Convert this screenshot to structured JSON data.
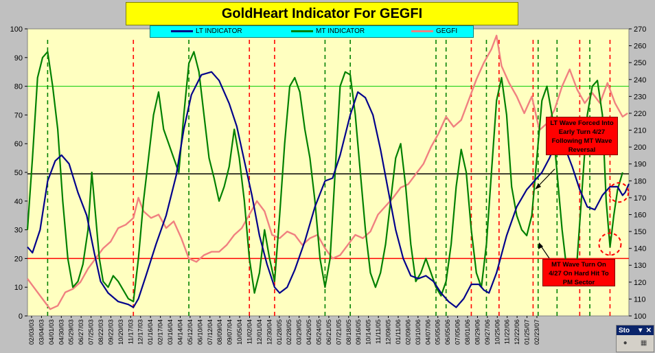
{
  "title": "GoldHeart Indicator For GEGFI",
  "legend": [
    {
      "name": "LT INDICATOR",
      "color": "#00008b"
    },
    {
      "name": "MT INDICATOR",
      "color": "#008000"
    },
    {
      "name": "GEGFI",
      "color": "#f08080"
    }
  ],
  "callouts": {
    "lt": "LT Wave Forced Into Early Turn 4/27 Following MT Wave Reversal",
    "mt": "MT Wave Turn On 4/27 On Hard Hit To PM Sector"
  },
  "widget": {
    "label": "Sto",
    "dropdown": "▼",
    "close": "✕"
  },
  "colors": {
    "plot_bg": "#ffffc0",
    "frame": "#c0c0c0",
    "lt": "#00008b",
    "mt": "#008000",
    "gegfi": "#f08080",
    "ref_black": "#000000",
    "ref_red": "#ff0000",
    "ref_green": "#00cc00"
  },
  "chart_data": {
    "type": "line",
    "title": "GoldHeart Indicator For GEGFI",
    "ylim": [
      0,
      100
    ],
    "y2lim": [
      100,
      270
    ],
    "y_ticks": [
      0,
      10,
      20,
      30,
      40,
      50,
      60,
      70,
      80,
      90,
      100
    ],
    "y2_ticks": [
      100,
      110,
      120,
      130,
      140,
      150,
      160,
      170,
      180,
      190,
      200,
      210,
      220,
      230,
      240,
      250,
      260,
      270
    ],
    "x_tick_labels": [
      "02/03/03",
      "03/04/03",
      "04/01/03",
      "04/30/03",
      "05/29/03",
      "06/27/03",
      "07/25/03",
      "08/22/03",
      "09/22/03",
      "10/20/03",
      "11/17/03",
      "12/17/03",
      "01/16/04",
      "02/17/04",
      "03/16/04",
      "04/14/04",
      "05/12/04",
      "06/10/04",
      "07/12/04",
      "08/09/04",
      "09/07/04",
      "10/05/04",
      "11/02/04",
      "12/01/04",
      "12/30/04",
      "01/28/05",
      "02/28/05",
      "03/29/05",
      "04/26/05",
      "05/24/05",
      "06/21/05",
      "07/21/05",
      "08/18/05",
      "09/16/05",
      "10/14/05",
      "11/11/05",
      "12/09/05",
      "01/11/06",
      "02/09/06",
      "03/10/06",
      "04/07/06",
      "05/05/06",
      "06/05/06",
      "07/05/06",
      "08/01/06",
      "08/29/06",
      "09/27/06",
      "10/25/06",
      "11/22/06",
      "12/22/06",
      "01/25/07",
      "02/23/07"
    ],
    "reference_lines": [
      {
        "value": 80,
        "color": "#00cc00"
      },
      {
        "value": 49.5,
        "color": "#000000"
      },
      {
        "value": 20,
        "color": "#ff0000"
      }
    ],
    "series": [
      {
        "name": "LT INDICATOR",
        "axis": "left",
        "values": [
          [
            0,
            24
          ],
          [
            4,
            22
          ],
          [
            10,
            30
          ],
          [
            16,
            47
          ],
          [
            22,
            54
          ],
          [
            27,
            56
          ],
          [
            33,
            53
          ],
          [
            40,
            43
          ],
          [
            47,
            35
          ],
          [
            53,
            22
          ],
          [
            58,
            12
          ],
          [
            64,
            8
          ],
          [
            72,
            5
          ],
          [
            80,
            4
          ],
          [
            84,
            3
          ],
          [
            88,
            6
          ],
          [
            94,
            14
          ],
          [
            102,
            25
          ],
          [
            110,
            35
          ],
          [
            118,
            49
          ],
          [
            124,
            65
          ],
          [
            130,
            77
          ],
          [
            138,
            84
          ],
          [
            146,
            85
          ],
          [
            152,
            82
          ],
          [
            160,
            74
          ],
          [
            166,
            66
          ],
          [
            172,
            54
          ],
          [
            178,
            42
          ],
          [
            184,
            28
          ],
          [
            190,
            18
          ],
          [
            196,
            10
          ],
          [
            200,
            8
          ],
          [
            206,
            10
          ],
          [
            212,
            16
          ],
          [
            220,
            26
          ],
          [
            228,
            38
          ],
          [
            236,
            47
          ],
          [
            242,
            48
          ],
          [
            248,
            56
          ],
          [
            256,
            70
          ],
          [
            262,
            78
          ],
          [
            268,
            76
          ],
          [
            274,
            70
          ],
          [
            280,
            58
          ],
          [
            286,
            44
          ],
          [
            292,
            30
          ],
          [
            298,
            20
          ],
          [
            304,
            14
          ],
          [
            310,
            13
          ],
          [
            316,
            14
          ],
          [
            322,
            12
          ],
          [
            328,
            8
          ],
          [
            334,
            5
          ],
          [
            340,
            3
          ],
          [
            346,
            6
          ],
          [
            352,
            11
          ],
          [
            358,
            11
          ],
          [
            362,
            9
          ],
          [
            366,
            8
          ],
          [
            372,
            15
          ],
          [
            380,
            28
          ],
          [
            388,
            38
          ],
          [
            396,
            44
          ],
          [
            404,
            48
          ],
          [
            408,
            50
          ],
          [
            414,
            55
          ],
          [
            420,
            61
          ],
          [
            426,
            59
          ],
          [
            432,
            52
          ],
          [
            438,
            44
          ],
          [
            444,
            38
          ],
          [
            450,
            37
          ],
          [
            456,
            42
          ],
          [
            462,
            45
          ],
          [
            468,
            45
          ],
          [
            472,
            42
          ],
          [
            474,
            43
          ],
          [
            477,
            46
          ]
        ]
      },
      {
        "name": "MT INDICATOR",
        "axis": "left",
        "values": [
          [
            0,
            30
          ],
          [
            4,
            55
          ],
          [
            8,
            83
          ],
          [
            12,
            90
          ],
          [
            16,
            92
          ],
          [
            20,
            80
          ],
          [
            24,
            65
          ],
          [
            28,
            40
          ],
          [
            32,
            20
          ],
          [
            36,
            10
          ],
          [
            40,
            12
          ],
          [
            44,
            18
          ],
          [
            48,
            30
          ],
          [
            51,
            50
          ],
          [
            54,
            35
          ],
          [
            57,
            20
          ],
          [
            60,
            12
          ],
          [
            64,
            10
          ],
          [
            68,
            14
          ],
          [
            72,
            12
          ],
          [
            76,
            9
          ],
          [
            80,
            6
          ],
          [
            84,
            5
          ],
          [
            88,
            20
          ],
          [
            92,
            40
          ],
          [
            96,
            55
          ],
          [
            100,
            70
          ],
          [
            104,
            78
          ],
          [
            108,
            65
          ],
          [
            112,
            60
          ],
          [
            116,
            55
          ],
          [
            120,
            50
          ],
          [
            124,
            70
          ],
          [
            128,
            88
          ],
          [
            132,
            92
          ],
          [
            136,
            85
          ],
          [
            140,
            70
          ],
          [
            144,
            55
          ],
          [
            148,
            48
          ],
          [
            152,
            40
          ],
          [
            156,
            45
          ],
          [
            160,
            52
          ],
          [
            164,
            65
          ],
          [
            168,
            55
          ],
          [
            172,
            40
          ],
          [
            176,
            20
          ],
          [
            180,
            8
          ],
          [
            184,
            15
          ],
          [
            188,
            30
          ],
          [
            192,
            20
          ],
          [
            196,
            12
          ],
          [
            200,
            35
          ],
          [
            204,
            60
          ],
          [
            208,
            80
          ],
          [
            212,
            83
          ],
          [
            216,
            78
          ],
          [
            220,
            65
          ],
          [
            224,
            55
          ],
          [
            228,
            40
          ],
          [
            232,
            20
          ],
          [
            236,
            10
          ],
          [
            240,
            20
          ],
          [
            244,
            50
          ],
          [
            248,
            80
          ],
          [
            252,
            85
          ],
          [
            256,
            84
          ],
          [
            260,
            70
          ],
          [
            264,
            50
          ],
          [
            268,
            30
          ],
          [
            272,
            15
          ],
          [
            276,
            10
          ],
          [
            280,
            15
          ],
          [
            284,
            25
          ],
          [
            288,
            40
          ],
          [
            292,
            55
          ],
          [
            296,
            60
          ],
          [
            300,
            45
          ],
          [
            304,
            25
          ],
          [
            308,
            12
          ],
          [
            312,
            15
          ],
          [
            316,
            20
          ],
          [
            320,
            15
          ],
          [
            324,
            10
          ],
          [
            328,
            7
          ],
          [
            332,
            12
          ],
          [
            336,
            25
          ],
          [
            340,
            45
          ],
          [
            344,
            58
          ],
          [
            348,
            50
          ],
          [
            352,
            30
          ],
          [
            356,
            15
          ],
          [
            360,
            10
          ],
          [
            364,
            25
          ],
          [
            368,
            50
          ],
          [
            372,
            75
          ],
          [
            376,
            83
          ],
          [
            380,
            70
          ],
          [
            384,
            45
          ],
          [
            388,
            35
          ],
          [
            392,
            30
          ],
          [
            396,
            28
          ],
          [
            400,
            35
          ],
          [
            404,
            55
          ],
          [
            408,
            75
          ],
          [
            412,
            80
          ],
          [
            416,
            70
          ],
          [
            420,
            50
          ],
          [
            424,
            30
          ],
          [
            428,
            15
          ],
          [
            432,
            12
          ],
          [
            436,
            20
          ],
          [
            440,
            45
          ],
          [
            444,
            70
          ],
          [
            448,
            80
          ],
          [
            452,
            82
          ],
          [
            456,
            70
          ],
          [
            459,
            40
          ],
          [
            462,
            24
          ],
          [
            465,
            35
          ],
          [
            468,
            44
          ],
          [
            472,
            50
          ]
        ]
      },
      {
        "name": "GEGFI",
        "axis": "right",
        "values": [
          [
            0,
            122
          ],
          [
            6,
            116
          ],
          [
            12,
            110
          ],
          [
            18,
            104
          ],
          [
            24,
            106
          ],
          [
            30,
            114
          ],
          [
            36,
            116
          ],
          [
            42,
            120
          ],
          [
            48,
            128
          ],
          [
            54,
            134
          ],
          [
            60,
            140
          ],
          [
            66,
            144
          ],
          [
            72,
            152
          ],
          [
            78,
            154
          ],
          [
            84,
            158
          ],
          [
            88,
            170
          ],
          [
            92,
            162
          ],
          [
            98,
            158
          ],
          [
            104,
            160
          ],
          [
            110,
            152
          ],
          [
            116,
            156
          ],
          [
            122,
            146
          ],
          [
            128,
            134
          ],
          [
            134,
            132
          ],
          [
            140,
            136
          ],
          [
            146,
            138
          ],
          [
            152,
            138
          ],
          [
            158,
            142
          ],
          [
            164,
            148
          ],
          [
            170,
            152
          ],
          [
            176,
            160
          ],
          [
            182,
            168
          ],
          [
            188,
            162
          ],
          [
            194,
            148
          ],
          [
            200,
            146
          ],
          [
            206,
            150
          ],
          [
            212,
            148
          ],
          [
            218,
            142
          ],
          [
            224,
            146
          ],
          [
            230,
            148
          ],
          [
            236,
            140
          ],
          [
            242,
            134
          ],
          [
            248,
            136
          ],
          [
            254,
            142
          ],
          [
            260,
            148
          ],
          [
            266,
            146
          ],
          [
            272,
            150
          ],
          [
            278,
            160
          ],
          [
            284,
            165
          ],
          [
            290,
            170
          ],
          [
            296,
            176
          ],
          [
            302,
            178
          ],
          [
            308,
            184
          ],
          [
            314,
            190
          ],
          [
            320,
            200
          ],
          [
            326,
            208
          ],
          [
            332,
            218
          ],
          [
            338,
            212
          ],
          [
            344,
            216
          ],
          [
            350,
            228
          ],
          [
            356,
            240
          ],
          [
            362,
            250
          ],
          [
            368,
            258
          ],
          [
            372,
            266
          ],
          [
            376,
            248
          ],
          [
            382,
            238
          ],
          [
            388,
            230
          ],
          [
            394,
            220
          ],
          [
            400,
            230
          ],
          [
            406,
            210
          ],
          [
            412,
            214
          ],
          [
            418,
            222
          ],
          [
            424,
            236
          ],
          [
            430,
            246
          ],
          [
            436,
            234
          ],
          [
            442,
            226
          ],
          [
            448,
            232
          ],
          [
            454,
            226
          ],
          [
            460,
            238
          ],
          [
            466,
            226
          ],
          [
            472,
            218
          ],
          [
            476,
            220
          ]
        ]
      }
    ],
    "vlines": [
      {
        "x": 16,
        "color": "#008000"
      },
      {
        "x": 84,
        "color": "#ff0000"
      },
      {
        "x": 128,
        "color": "#008000"
      },
      {
        "x": 176,
        "color": "#ff0000"
      },
      {
        "x": 196,
        "color": "#ff0000"
      },
      {
        "x": 236,
        "color": "#008000"
      },
      {
        "x": 256,
        "color": "#008000"
      },
      {
        "x": 324,
        "color": "#008000"
      },
      {
        "x": 332,
        "color": "#008000"
      },
      {
        "x": 352,
        "color": "#ff0000"
      },
      {
        "x": 364,
        "color": "#008000"
      },
      {
        "x": 374,
        "color": "#ff0000"
      },
      {
        "x": 401,
        "color": "#ff0000"
      },
      {
        "x": 405,
        "color": "#008000"
      },
      {
        "x": 420,
        "color": "#008000"
      },
      {
        "x": 438,
        "color": "#ff0000"
      },
      {
        "x": 446,
        "color": "#008000"
      },
      {
        "x": 462,
        "color": "#ff0000"
      }
    ]
  }
}
